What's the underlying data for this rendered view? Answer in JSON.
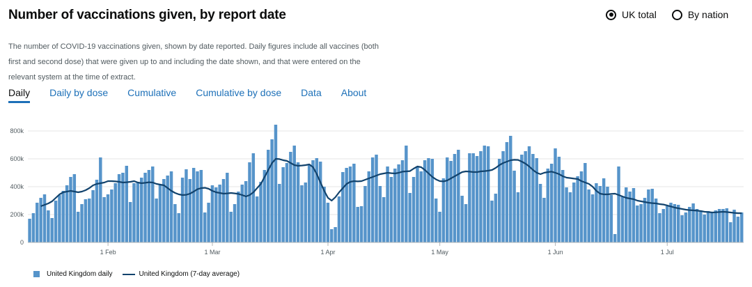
{
  "header": {
    "title": "Number of vaccinations given, by report date",
    "description": "The number of COVID-19 vaccinations given, shown by date reported. Daily figures include all vaccines (both first and second dose) that were given up to and including the date shown, and that were entered on the relevant system at the time of extract."
  },
  "area_options": [
    {
      "label": "UK total",
      "selected": true
    },
    {
      "label": "By nation",
      "selected": false
    }
  ],
  "tabs": [
    {
      "label": "Daily",
      "active": true
    },
    {
      "label": "Daily by dose",
      "active": false
    },
    {
      "label": "Cumulative",
      "active": false
    },
    {
      "label": "Cumulative by dose",
      "active": false
    },
    {
      "label": "Data",
      "active": false
    },
    {
      "label": "About",
      "active": false
    }
  ],
  "colors": {
    "bar": "#5694ca",
    "line": "#12436d",
    "grid": "#e6e6e6",
    "axis_text": "#505a5f",
    "link": "#1d70b8"
  },
  "chart_data": {
    "type": "bar",
    "ylim": [
      0,
      850000
    ],
    "y_ticks": [
      0,
      200000,
      400000,
      600000,
      800000
    ],
    "y_tick_labels": [
      "0",
      "200k",
      "400k",
      "600k",
      "800k"
    ],
    "x_tick_labels": [
      {
        "label": "1 Feb",
        "index": 21
      },
      {
        "label": "1 Mar",
        "index": 49
      },
      {
        "label": "1 Apr",
        "index": 80
      },
      {
        "label": "1 May",
        "index": 110
      },
      {
        "label": "1 Jun",
        "index": 141
      },
      {
        "label": "1 Jul",
        "index": 171
      }
    ],
    "series": [
      {
        "name": "United Kingdom daily",
        "kind": "bar",
        "values": [
          170000,
          210000,
          285000,
          320000,
          345000,
          230000,
          175000,
          300000,
          340000,
          370000,
          410000,
          470000,
          490000,
          220000,
          275000,
          310000,
          315000,
          375000,
          450000,
          610000,
          325000,
          345000,
          380000,
          425000,
          490000,
          500000,
          550000,
          290000,
          425000,
          435000,
          465000,
          500000,
          520000,
          545000,
          315000,
          415000,
          455000,
          480000,
          510000,
          275000,
          210000,
          465000,
          525000,
          455000,
          535000,
          510000,
          520000,
          215000,
          285000,
          410000,
          395000,
          415000,
          455000,
          500000,
          220000,
          275000,
          365000,
          415000,
          440000,
          575000,
          640000,
          330000,
          435000,
          520000,
          665000,
          740000,
          845000,
          420000,
          540000,
          570000,
          650000,
          695000,
          575000,
          410000,
          430000,
          560000,
          590000,
          605000,
          580000,
          400000,
          285000,
          95000,
          110000,
          330000,
          505000,
          535000,
          545000,
          565000,
          255000,
          260000,
          405000,
          510000,
          610000,
          630000,
          405000,
          325000,
          545000,
          470000,
          530000,
          560000,
          590000,
          695000,
          355000,
          470000,
          545000,
          510000,
          590000,
          605000,
          600000,
          315000,
          220000,
          460000,
          610000,
          585000,
          635000,
          665000,
          335000,
          275000,
          640000,
          640000,
          620000,
          655000,
          695000,
          690000,
          300000,
          350000,
          600000,
          655000,
          720000,
          765000,
          515000,
          360000,
          630000,
          655000,
          690000,
          635000,
          605000,
          420000,
          320000,
          530000,
          565000,
          675000,
          615000,
          520000,
          395000,
          360000,
          430000,
          475000,
          510000,
          570000,
          380000,
          345000,
          425000,
          405000,
          460000,
          400000,
          340000,
          60000,
          545000,
          330000,
          395000,
          365000,
          390000,
          265000,
          275000,
          320000,
          380000,
          385000,
          315000,
          210000,
          240000,
          260000,
          285000,
          275000,
          270000,
          195000,
          215000,
          255000,
          280000,
          240000,
          230000,
          200000,
          225000,
          220000,
          230000,
          240000,
          240000,
          245000,
          145000,
          235000,
          185000,
          215000
        ]
      },
      {
        "name": "United Kingdom (7-day average)",
        "kind": "line",
        "start_index": 3,
        "values": [
          260000,
          270000,
          280000,
          295000,
          320000,
          345000,
          360000,
          365000,
          370000,
          365000,
          360000,
          365000,
          375000,
          390000,
          410000,
          420000,
          425000,
          430000,
          440000,
          440000,
          438000,
          435000,
          430000,
          432000,
          435000,
          440000,
          430000,
          425000,
          428000,
          432000,
          430000,
          420000,
          415000,
          410000,
          390000,
          370000,
          355000,
          345000,
          340000,
          342000,
          350000,
          365000,
          382000,
          390000,
          392000,
          385000,
          370000,
          360000,
          355000,
          350000,
          352000,
          355000,
          352000,
          348000,
          340000,
          330000,
          340000,
          360000,
          390000,
          420000,
          470000,
          520000,
          570000,
          600000,
          598000,
          590000,
          585000,
          570000,
          555000,
          550000,
          552000,
          555000,
          560000,
          540000,
          490000,
          430000,
          370000,
          320000,
          300000,
          325000,
          360000,
          390000,
          420000,
          435000,
          440000,
          438000,
          440000,
          450000,
          460000,
          470000,
          480000,
          490000,
          495000,
          500000,
          497000,
          495000,
          500000,
          508000,
          510000,
          512000,
          530000,
          545000,
          540000,
          520000,
          495000,
          470000,
          452000,
          440000,
          438000,
          445000,
          460000,
          475000,
          490000,
          505000,
          510000,
          508000,
          505000,
          505000,
          510000,
          512000,
          515000,
          520000,
          535000,
          555000,
          570000,
          580000,
          590000,
          593000,
          592000,
          580000,
          565000,
          545000,
          520000,
          500000,
          490000,
          500000,
          505000,
          508000,
          500000,
          490000,
          475000,
          465000,
          462000,
          458000,
          455000,
          440000,
          430000,
          420000,
          400000,
          370000,
          350000,
          345000,
          345000,
          348000,
          350000,
          340000,
          330000,
          320000,
          315000,
          310000,
          300000,
          295000,
          290000,
          285000,
          282000,
          280000,
          275000,
          272000,
          265000,
          258000,
          250000,
          245000,
          240000,
          235000,
          232000,
          230000,
          228000,
          225000,
          220000,
          218000,
          215000,
          216000,
          218000,
          220000,
          218000,
          215000,
          212000,
          210000,
          210000
        ]
      }
    ]
  }
}
